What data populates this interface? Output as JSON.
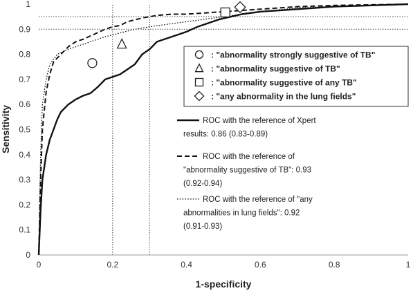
{
  "chart_data": {
    "type": "line",
    "title": "",
    "xlabel": "1-specificity",
    "ylabel": "Sensitivity",
    "xlim": [
      0,
      1
    ],
    "ylim": [
      0,
      1
    ],
    "xticks": [
      "0",
      "0.2",
      "0.4",
      "0.6",
      "0.8",
      "1"
    ],
    "yticks": [
      "0",
      "0.1",
      "0.2",
      "0.3",
      "0.4",
      "0.5",
      "0.6",
      "0.7",
      "0.8",
      "0.9",
      "1"
    ],
    "reference_lines": {
      "horizontal": [
        0.9,
        0.95
      ],
      "vertical": [
        0.2,
        0.3
      ]
    },
    "series": [
      {
        "name_lines": [
          "ROC with the reference of Xpert",
          "results: 0.86 (0.83-0.89)"
        ],
        "style": "solid",
        "points": [
          [
            0,
            0
          ],
          [
            0.005,
            0.18
          ],
          [
            0.01,
            0.3
          ],
          [
            0.02,
            0.4
          ],
          [
            0.03,
            0.46
          ],
          [
            0.04,
            0.5
          ],
          [
            0.05,
            0.54
          ],
          [
            0.06,
            0.57
          ],
          [
            0.08,
            0.6
          ],
          [
            0.1,
            0.62
          ],
          [
            0.12,
            0.635
          ],
          [
            0.14,
            0.645
          ],
          [
            0.16,
            0.67
          ],
          [
            0.18,
            0.7
          ],
          [
            0.2,
            0.71
          ],
          [
            0.22,
            0.72
          ],
          [
            0.24,
            0.74
          ],
          [
            0.26,
            0.76
          ],
          [
            0.28,
            0.8
          ],
          [
            0.3,
            0.82
          ],
          [
            0.32,
            0.85
          ],
          [
            0.34,
            0.86
          ],
          [
            0.36,
            0.87
          ],
          [
            0.38,
            0.88
          ],
          [
            0.4,
            0.89
          ],
          [
            0.43,
            0.91
          ],
          [
            0.46,
            0.925
          ],
          [
            0.49,
            0.94
          ],
          [
            0.52,
            0.95
          ],
          [
            0.55,
            0.96
          ],
          [
            0.6,
            0.97
          ],
          [
            0.7,
            0.98
          ],
          [
            0.8,
            0.99
          ],
          [
            0.9,
            0.995
          ],
          [
            1,
            1
          ]
        ]
      },
      {
        "name_lines": [
          "ROC with the reference of",
          "\"abnormality suggestive of TB\": 0.93",
          "(0.92-0.94)"
        ],
        "style": "dashed",
        "points": [
          [
            0,
            0
          ],
          [
            0.005,
            0.3
          ],
          [
            0.01,
            0.5
          ],
          [
            0.02,
            0.65
          ],
          [
            0.03,
            0.72
          ],
          [
            0.04,
            0.77
          ],
          [
            0.06,
            0.8
          ],
          [
            0.08,
            0.83
          ],
          [
            0.1,
            0.85
          ],
          [
            0.12,
            0.86
          ],
          [
            0.15,
            0.88
          ],
          [
            0.18,
            0.9
          ],
          [
            0.2,
            0.91
          ],
          [
            0.22,
            0.915
          ],
          [
            0.24,
            0.93
          ],
          [
            0.28,
            0.945
          ],
          [
            0.32,
            0.955
          ],
          [
            0.36,
            0.96
          ],
          [
            0.4,
            0.96
          ],
          [
            0.45,
            0.965
          ],
          [
            0.5,
            0.97
          ],
          [
            0.55,
            0.975
          ],
          [
            0.6,
            0.98
          ],
          [
            0.7,
            0.99
          ],
          [
            0.8,
            0.995
          ],
          [
            1,
            1
          ]
        ]
      },
      {
        "name_lines": [
          "ROC with the reference of \"any",
          "abnormalities in lung fields\": 0.92",
          "(0.91-0.93)"
        ],
        "style": "dotted",
        "points": [
          [
            0,
            0
          ],
          [
            0.005,
            0.4
          ],
          [
            0.01,
            0.6
          ],
          [
            0.02,
            0.7
          ],
          [
            0.03,
            0.76
          ],
          [
            0.05,
            0.8
          ],
          [
            0.08,
            0.82
          ],
          [
            0.1,
            0.83
          ],
          [
            0.14,
            0.85
          ],
          [
            0.18,
            0.87
          ],
          [
            0.22,
            0.885
          ],
          [
            0.26,
            0.9
          ],
          [
            0.3,
            0.91
          ],
          [
            0.35,
            0.92
          ],
          [
            0.4,
            0.93
          ],
          [
            0.45,
            0.94
          ],
          [
            0.5,
            0.95
          ],
          [
            0.55,
            0.96
          ],
          [
            0.6,
            0.97
          ],
          [
            0.7,
            0.985
          ],
          [
            0.8,
            0.99
          ],
          [
            0.9,
            0.995
          ],
          [
            1,
            1
          ]
        ]
      }
    ],
    "markers": [
      {
        "shape": "circle",
        "label": ": \"abnormality strongly suggestive of TB\"",
        "x": 0.145,
        "y": 0.765
      },
      {
        "shape": "triangle",
        "label": ": \"abnormality suggestive of TB\"",
        "x": 0.225,
        "y": 0.84
      },
      {
        "shape": "square",
        "label": ": \"abnormality suggestive of any TB\"",
        "x": 0.505,
        "y": 0.967
      },
      {
        "shape": "diamond",
        "label": ": \"any abnormality in the lung fields\"",
        "x": 0.545,
        "y": 0.988
      }
    ]
  }
}
